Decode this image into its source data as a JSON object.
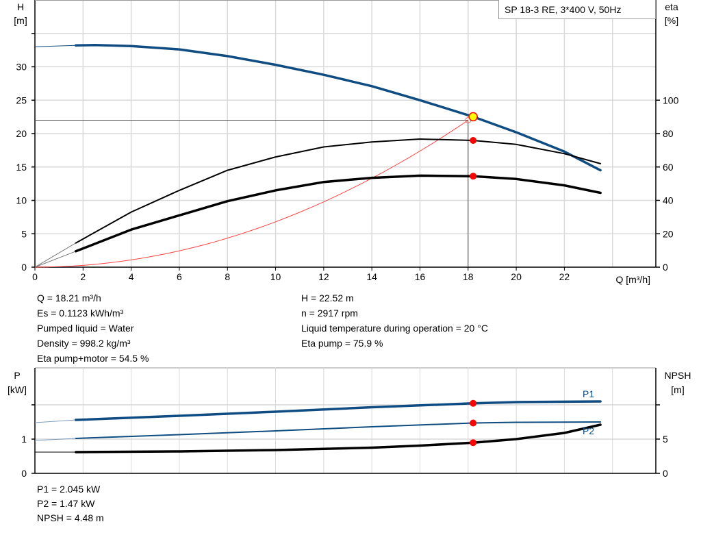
{
  "chart_data": [
    {
      "type": "line",
      "title": "SP 18-3 RE, 3*400 V, 50Hz",
      "xlabel": "Q [m³/h]",
      "ylabel_left": [
        "H",
        "[m]"
      ],
      "ylabel_right": [
        "eta",
        "[%]"
      ],
      "xlim": [
        0,
        25.8
      ],
      "ylim_left": [
        0,
        40
      ],
      "ylim_right": [
        0,
        160
      ],
      "xticks": [
        "0",
        "2",
        "4",
        "6",
        "8",
        "10",
        "12",
        "14",
        "16",
        "18",
        "20",
        "22"
      ],
      "yticks_left": [
        "0",
        "5",
        "10",
        "15",
        "20",
        "25",
        "30"
      ],
      "yticks_right": [
        "0",
        "20",
        "40",
        "60",
        "80",
        "100"
      ],
      "grid": true,
      "series": [
        {
          "key": "H",
          "axis": "left",
          "color": "#0f4c81",
          "x": [
            1.7,
            2.5,
            4,
            6,
            8,
            10,
            12,
            14,
            16,
            18.21,
            20,
            22,
            23.5
          ],
          "y": [
            33.2,
            33.25,
            33.1,
            32.6,
            31.6,
            30.3,
            28.8,
            27.1,
            25.0,
            22.52,
            20.2,
            17.3,
            14.5
          ],
          "extrapolated": {
            "x": [
              0,
              1.7
            ],
            "y": [
              33.0,
              33.2
            ]
          }
        },
        {
          "key": "eta_pump",
          "axis": "right",
          "color": "#000000",
          "x": [
            1.7,
            4,
            6,
            8,
            10,
            12,
            14,
            16,
            18.21,
            20,
            22,
            23.5
          ],
          "y": [
            14.5,
            33,
            46,
            58,
            66,
            72,
            75,
            76.7,
            75.9,
            73.5,
            68,
            62
          ],
          "extrapolated": {
            "x": [
              0,
              1.7
            ],
            "y": [
              0,
              14.5
            ]
          }
        },
        {
          "key": "eta_pump_motor",
          "axis": "right",
          "color": "#000000",
          "x": [
            1.7,
            4,
            6,
            8,
            10,
            12,
            14,
            16,
            18.21,
            20,
            22,
            23.5
          ],
          "y": [
            9.5,
            22.5,
            31,
            39.5,
            46,
            51,
            53.5,
            54.8,
            54.5,
            52.8,
            49,
            44.5
          ],
          "extrapolated": {
            "x": [
              0,
              1.7
            ],
            "y": [
              0,
              9.5
            ]
          }
        },
        {
          "key": "system_curve",
          "axis": "left",
          "color": "#ff4040",
          "function": "H = 0.0679*Q^2",
          "x_range": [
            0,
            18
          ]
        }
      ],
      "operating_point": {
        "Q": 18.21,
        "H": 22.52,
        "eta_pump": 75.9,
        "eta_pump_motor": 54.5
      },
      "reference_lines": {
        "H": 22,
        "Q": 18
      }
    },
    {
      "type": "line",
      "ylabel_left": [
        "P",
        "[kW]"
      ],
      "ylabel_right": [
        "NPSH",
        "[m]"
      ],
      "xlim": [
        0,
        25.8
      ],
      "ylim_left": [
        0,
        3.08
      ],
      "ylim_right": [
        0,
        15.4
      ],
      "yticks_left": [
        "0",
        "1"
      ],
      "yticks_right": [
        "0",
        "5"
      ],
      "grid": true,
      "series": [
        {
          "key": "P1",
          "name": "P1",
          "axis": "left",
          "color": "#0f4c81",
          "x": [
            0,
            1.7,
            6,
            10,
            14,
            18.21,
            20,
            23.5
          ],
          "y": [
            1.48,
            1.56,
            1.68,
            1.8,
            1.93,
            2.045,
            2.08,
            2.1
          ]
        },
        {
          "key": "P2",
          "name": "P2",
          "axis": "left",
          "color": "#0f4c81",
          "x": [
            0,
            1.7,
            6,
            10,
            14,
            18.21,
            20,
            23.5
          ],
          "y": [
            0.96,
            1.02,
            1.13,
            1.24,
            1.36,
            1.47,
            1.49,
            1.5
          ]
        },
        {
          "key": "NPSH",
          "axis": "right",
          "color": "#000000",
          "x": [
            0,
            1.7,
            6,
            10,
            14,
            16,
            18.21,
            20,
            22,
            23.5
          ],
          "y": [
            3.1,
            3.1,
            3.2,
            3.4,
            3.75,
            4.05,
            4.48,
            5.0,
            5.9,
            7.1
          ]
        }
      ],
      "operating_point": {
        "Q": 18.21,
        "P1": 2.045,
        "P2": 1.47,
        "NPSH": 4.48
      }
    }
  ],
  "info_top": {
    "left": [
      "Q = 18.21 m³/h",
      "Es = 0.1123 kWh/m³",
      "Pumped liquid = Water",
      "Density = 998.2 kg/m³",
      "Eta pump+motor = 54.5 %"
    ],
    "right": [
      "H = 22.52 m",
      "n = 2917 rpm",
      "Liquid temperature during operation = 20 °C",
      "Eta pump = 75.9 %"
    ]
  },
  "info_bottom": [
    "P1 = 2.045 kW",
    "P2 = 1.47 kW",
    "NPSH = 4.48 m"
  ],
  "colors": {
    "blue": "#0f4c81",
    "red": "#ff0000",
    "yellow": "#ffff00",
    "grid": "#d9d9d9"
  }
}
